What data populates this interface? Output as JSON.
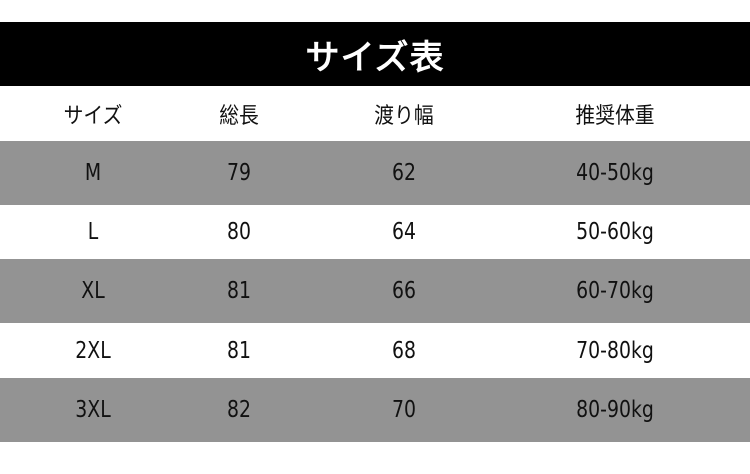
{
  "title": "サイズ表",
  "headers": [
    "サイズ",
    "総長",
    "渡り幅",
    "推奨体重"
  ],
  "rows": [
    [
      "M",
      "79",
      "62",
      "40-50kg"
    ],
    [
      "L",
      "80",
      "64",
      "50-60kg"
    ],
    [
      "XL",
      "81",
      "66",
      "60-70kg"
    ],
    [
      "2XL",
      "81",
      "68",
      "70-80kg"
    ],
    [
      "3XL",
      "82",
      "70",
      "80-90kg"
    ]
  ],
  "colors": {
    "header_band": "#000000",
    "stripe": "#939393",
    "background": "#ffffff"
  }
}
